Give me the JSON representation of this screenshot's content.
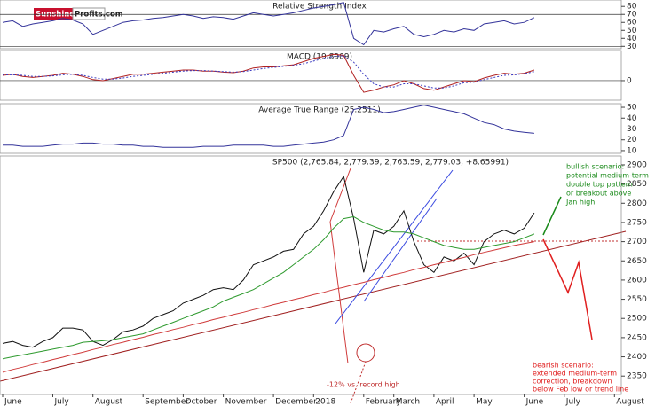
{
  "logo": {
    "left": "Sunshine",
    "right": "Profits.com"
  },
  "chart_data": [
    {
      "type": "line",
      "title": "Relative Strength Index",
      "ylim": [
        27,
        88
      ],
      "yticks": [
        30,
        40,
        50,
        60,
        70,
        80
      ],
      "reference_lines": [
        70,
        30
      ],
      "series": [
        {
          "color": "#33339a",
          "values": [
            60,
            62,
            55,
            58,
            60,
            62,
            65,
            63,
            58,
            45,
            50,
            55,
            60,
            62,
            63,
            65,
            66,
            68,
            70,
            68,
            65,
            67,
            66,
            64,
            68,
            72,
            70,
            68,
            70,
            72,
            75,
            78,
            80,
            82,
            85,
            40,
            32,
            50,
            48,
            52,
            55,
            45,
            42,
            45,
            50,
            48,
            52,
            50,
            58,
            60,
            62,
            58,
            60,
            66
          ]
        }
      ]
    },
    {
      "type": "line",
      "title": "MACD (19.8909)",
      "ylim": [
        -37,
        57
      ],
      "yticks": [
        0
      ],
      "reference_lines": [
        0
      ],
      "series": [
        {
          "color": "#b02020",
          "line_style": "solid",
          "values": [
            10,
            12,
            8,
            6,
            8,
            10,
            14,
            12,
            8,
            2,
            0,
            4,
            8,
            12,
            12,
            14,
            16,
            18,
            20,
            20,
            18,
            18,
            16,
            15,
            18,
            24,
            26,
            26,
            28,
            30,
            36,
            42,
            46,
            50,
            48,
            10,
            -22,
            -18,
            -12,
            -8,
            0,
            -6,
            -15,
            -18,
            -12,
            -6,
            0,
            -2,
            5,
            10,
            14,
            12,
            14,
            20
          ]
        },
        {
          "color": "#3a3ac0",
          "line_style": "dotted",
          "values": [
            11,
            11,
            10,
            8,
            8,
            9,
            11,
            12,
            10,
            6,
            3,
            3,
            5,
            8,
            10,
            12,
            14,
            16,
            18,
            19,
            19,
            18,
            17,
            16,
            17,
            20,
            23,
            25,
            27,
            29,
            32,
            37,
            42,
            46,
            47,
            35,
            12,
            -6,
            -12,
            -12,
            -6,
            -6,
            -10,
            -14,
            -14,
            -10,
            -4,
            -3,
            2,
            6,
            10,
            11,
            13,
            17
          ]
        }
      ]
    },
    {
      "type": "line",
      "title": "Average True Range (25.2511)",
      "ylim": [
        7.5,
        53.3
      ],
      "yticks": [
        10,
        20,
        30,
        40,
        50
      ],
      "series": [
        {
          "color": "#33339a",
          "values": [
            15,
            15,
            14,
            14,
            14,
            15,
            16,
            16,
            17,
            17,
            16,
            16,
            15,
            15,
            14,
            14,
            13,
            13,
            13,
            13,
            14,
            14,
            14,
            15,
            15,
            15,
            15,
            14,
            14,
            15,
            16,
            17,
            18,
            20,
            24,
            48,
            50,
            48,
            45,
            46,
            48,
            50,
            52,
            50,
            48,
            46,
            44,
            40,
            36,
            34,
            30,
            28,
            27,
            26
          ]
        }
      ]
    },
    {
      "type": "line",
      "title": "SP500 (2,765.84, 2,779.39, 2,763.59, 2,779.03, +8.65991)",
      "ylim": [
        2302,
        2923
      ],
      "yticks": [
        2350,
        2400,
        2450,
        2500,
        2550,
        2600,
        2650,
        2700,
        2750,
        2800,
        2850,
        2900
      ],
      "categories": [
        "June",
        null,
        null,
        null,
        null,
        "July",
        null,
        null,
        null,
        "August",
        null,
        null,
        null,
        null,
        "September",
        null,
        null,
        null,
        "October",
        null,
        null,
        null,
        "November",
        null,
        null,
        null,
        null,
        "December",
        null,
        null,
        null,
        "2018",
        null,
        null,
        null,
        null,
        "February",
        null,
        null,
        "March",
        null,
        null,
        null,
        "April",
        null,
        null,
        null,
        "May",
        null,
        null,
        null,
        null,
        "June",
        null,
        null,
        null,
        "July",
        null,
        null,
        null,
        null,
        "August"
      ],
      "series": [
        {
          "color": "#111111",
          "values": [
            2435,
            2440,
            2430,
            2425,
            2440,
            2450,
            2475,
            2475,
            2470,
            2440,
            2430,
            2445,
            2465,
            2470,
            2480,
            2500,
            2510,
            2520,
            2540,
            2550,
            2560,
            2575,
            2580,
            2575,
            2600,
            2640,
            2650,
            2660,
            2675,
            2680,
            2720,
            2740,
            2780,
            2830,
            2870,
            2760,
            2620,
            2730,
            2720,
            2740,
            2780,
            2700,
            2640,
            2620,
            2660,
            2650,
            2670,
            2640,
            2700,
            2720,
            2730,
            2720,
            2735,
            2775,
            null,
            null,
            null,
            null,
            null,
            null,
            null,
            null
          ]
        },
        {
          "color": "#2e9a2e",
          "values": [
            2395,
            2400,
            2405,
            2410,
            2415,
            2420,
            2425,
            2430,
            2438,
            2440,
            2442,
            2445,
            2450,
            2455,
            2460,
            2470,
            2480,
            2490,
            2500,
            2510,
            2520,
            2530,
            2545,
            2555,
            2565,
            2575,
            2590,
            2605,
            2620,
            2640,
            2660,
            2680,
            2705,
            2735,
            2760,
            2765,
            2750,
            2740,
            2730,
            2725,
            2725,
            2720,
            2710,
            2700,
            2690,
            2685,
            2680,
            2680,
            2685,
            2690,
            2695,
            2700,
            2710,
            2720,
            null,
            null,
            null,
            null,
            null,
            null,
            null,
            null
          ]
        },
        {
          "color": "#d03a3a",
          "values": [
            2360,
            2367,
            2373,
            2380,
            2386,
            2393,
            2399,
            2406,
            2412,
            2419,
            2425,
            2432,
            2438,
            2445,
            2451,
            2458,
            2464,
            2471,
            2477,
            2484,
            2490,
            2497,
            2503,
            2510,
            2516,
            2523,
            2529,
            2536,
            2542,
            2549,
            2555,
            2562,
            2568,
            2575,
            2581,
            2588,
            2594,
            2601,
            2607,
            2614,
            2620,
            2627,
            2633,
            2640,
            2646,
            2653,
            2659,
            2666,
            2672,
            2678,
            2684,
            2690,
            2695,
            2700,
            null,
            null,
            null,
            null,
            null,
            null,
            null,
            null
          ]
        }
      ],
      "bullish_note": [
        "bullish scenario:",
        "potential medium-term",
        "double top pattern",
        "or breakout above",
        "Jan high"
      ],
      "bearish_note": [
        "bearish scenario:",
        "extended medium-term",
        "correction, breakdown",
        "below Feb low or trend line"
      ],
      "low_note": "-12% vs. record high"
    }
  ]
}
